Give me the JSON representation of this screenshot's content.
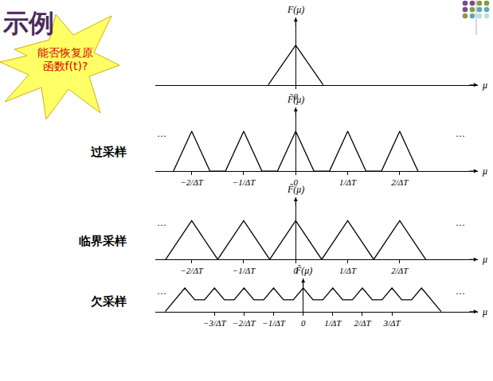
{
  "page": {
    "title": "示例",
    "callout": "能否恢复原函数f(t)?"
  },
  "chart_data": [
    {
      "type": "line",
      "xlabel": "μ",
      "ylabel": "F(μ)",
      "color": "#000000",
      "x": [
        -0.53,
        0,
        0.53
      ],
      "values": [
        0,
        1,
        0
      ],
      "xlim": [
        -2.7,
        3.5
      ],
      "ylim": [
        0,
        1.7
      ],
      "xticks": [
        0
      ],
      "grid": false,
      "tick_labels": "x"
    },
    {
      "type": "line",
      "title": "过采样",
      "xlabel": "μ",
      "ylabel": "F̃(μ)",
      "color": "#000000",
      "x": [
        -2.35,
        -2,
        -1.65,
        -1.35,
        -1,
        -0.65,
        -0.35,
        0,
        0.35,
        0.65,
        1,
        1.35,
        1.65,
        2,
        2.35
      ],
      "values": [
        0,
        1,
        0,
        0,
        1,
        0,
        0,
        1,
        0,
        0,
        1,
        0,
        0,
        1,
        0
      ],
      "xlim": [
        -2.7,
        3.5
      ],
      "ylim": [
        0,
        1.6
      ],
      "xticks": [
        {
          "value": -2,
          "label": "−2/ΔT"
        },
        {
          "value": -1,
          "label": "−1/ΔT"
        },
        0,
        {
          "value": 1,
          "label": "1/ΔT"
        },
        {
          "value": 2,
          "label": "2/ΔT"
        }
      ],
      "annotations": [
        {
          "text": "···"
        },
        {
          "text": "···"
        }
      ],
      "grid": false,
      "tick_labels": "x"
    },
    {
      "type": "line",
      "title": "临界采样",
      "xlabel": "μ",
      "ylabel": "F̃(μ)",
      "color": "#000000",
      "x": [
        -2.5,
        -2,
        -1.5,
        -1,
        -0.5,
        0,
        0.5,
        1,
        1.5,
        2,
        2.5
      ],
      "values": [
        0,
        1,
        0,
        1,
        0,
        1,
        0,
        1,
        0,
        1,
        0
      ],
      "xlim": [
        -2.7,
        3.5
      ],
      "ylim": [
        0,
        1.6
      ],
      "xticks": [
        {
          "value": -2,
          "label": "−2/ΔT"
        },
        {
          "value": -1,
          "label": "−1/ΔT"
        },
        0,
        {
          "value": 1,
          "label": "1/ΔT"
        },
        {
          "value": 2,
          "label": "2/ΔT"
        }
      ],
      "annotations": [
        {
          "text": "···"
        },
        {
          "text": "···"
        }
      ],
      "grid": false,
      "tick_labels": "x"
    },
    {
      "type": "line",
      "title": "欠采样",
      "xlabel": "μ",
      "ylabel": "F̃(μ)",
      "color": "#000000",
      "x": [
        -4.667,
        -4,
        -3.667,
        -3.333,
        -3,
        -2.667,
        -2.333,
        -2,
        -1.667,
        -1.333,
        -1,
        -0.667,
        -0.333,
        0,
        0.333,
        0.667,
        1,
        1.333,
        1.667,
        2,
        2.333,
        2.667,
        3,
        3.333,
        3.667,
        4,
        4.667
      ],
      "values": [
        0,
        1,
        0.5,
        0.5,
        1,
        0.5,
        0.5,
        1,
        0.5,
        0.5,
        1,
        0.5,
        0.5,
        1,
        0.5,
        0.5,
        1,
        0.5,
        0.5,
        1,
        0.5,
        0.5,
        1,
        0.5,
        0.5,
        1,
        0
      ],
      "xlim": [
        -5,
        5.9
      ],
      "ylim": [
        0,
        1.4
      ],
      "xticks": [
        {
          "value": -3,
          "label": "−3/ΔT"
        },
        {
          "value": -2,
          "label": "−2/ΔT"
        },
        {
          "value": -1,
          "label": "−1/ΔT"
        },
        0,
        {
          "value": 1,
          "label": "1/ΔT"
        },
        {
          "value": 2,
          "label": "2/ΔT"
        },
        {
          "value": 3,
          "label": "3/ΔT"
        }
      ],
      "annotations": [
        {
          "text": "···"
        },
        {
          "text": "···"
        }
      ],
      "grid": false,
      "tick_labels": "x"
    }
  ]
}
